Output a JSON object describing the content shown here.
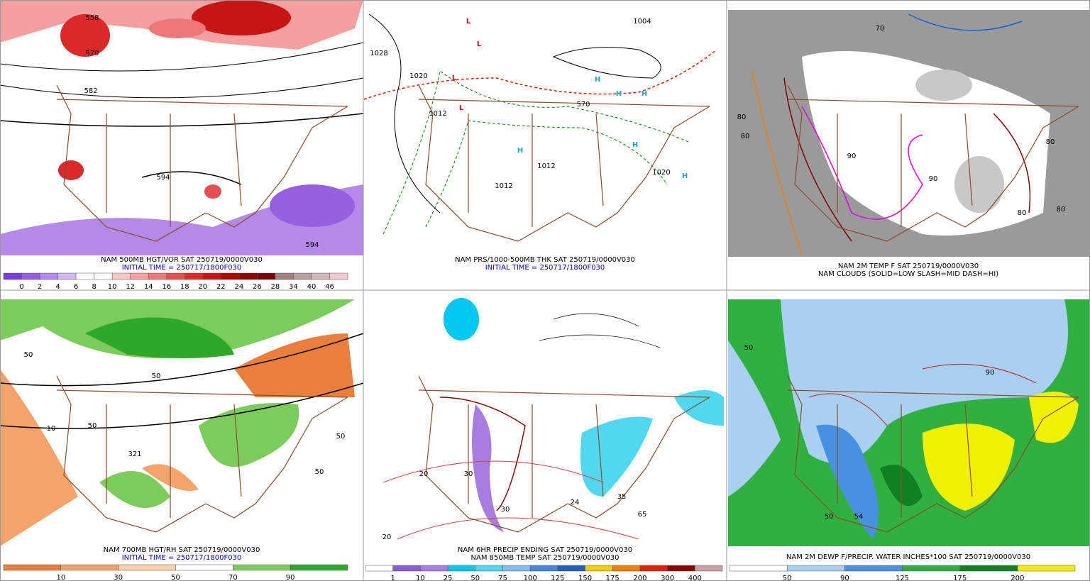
{
  "panels": [
    {
      "captions": [
        "NAM 500MB HGT/VOR SAT 250719/0000V030",
        "INITIAL TIME = 250717/1800F030"
      ],
      "caption_colors": [
        "#000000",
        "#0000cc"
      ],
      "map_labels": [
        "558",
        "570",
        "582",
        "594",
        "594"
      ],
      "colorbar": {
        "colors": [
          "#7a3fd9",
          "#9660e0",
          "#b48ae8",
          "#d0b8f0",
          "#ffffff",
          "#ffffff",
          "#f8c8c8",
          "#f4a0a0",
          "#ee7878",
          "#e65050",
          "#dc2828",
          "#c81414",
          "#b00000",
          "#900000",
          "#780000",
          "#a08080",
          "#b8a0a0",
          "#d0b8b8",
          "#f0c8d0"
        ],
        "labels": [
          "0",
          "2",
          "4",
          "6",
          "8",
          "10",
          "12",
          "14",
          "16",
          "18",
          "20",
          "22",
          "24",
          "26",
          "28",
          "34",
          "40",
          "46"
        ]
      }
    },
    {
      "captions": [
        "NAM PRS/1000-500MB THK SAT 250719/0000V030",
        "INITIAL TIME = 250717/1800F030"
      ],
      "caption_colors": [
        "#000000",
        "#0000cc"
      ],
      "map_labels": [
        "1028",
        "1020",
        "1012",
        "1012",
        "1012",
        "1004",
        "1020",
        "570",
        "L",
        "L",
        "L",
        "L",
        "H",
        "H",
        "H",
        "H",
        "H",
        "H"
      ]
    },
    {
      "captions": [
        "NAM 2M TEMP F SAT 250719/0000V030",
        "NAM CLOUDS (SOLID=LOW SLASH=MID DASH=HI)"
      ],
      "caption_colors": [
        "#000000",
        "#000000"
      ],
      "map_labels": [
        "80",
        "80",
        "90",
        "90",
        "80",
        "70",
        "80",
        "80"
      ]
    },
    {
      "captions": [
        "NAM 700MB HGT/RH SAT 250719/0000V030",
        "INITIAL TIME = 250717/1800F030"
      ],
      "caption_colors": [
        "#000000",
        "#0000cc"
      ],
      "map_labels": [
        "50",
        "50",
        "10",
        "50",
        "50",
        "321",
        "50"
      ],
      "colorbar": {
        "colors": [
          "#e8803c",
          "#f4a46a",
          "#fcd2ae",
          "#ffffff",
          "#7ccc5c",
          "#2ea828"
        ],
        "labels": [
          "10",
          "30",
          "50",
          "70",
          "90"
        ]
      }
    },
    {
      "captions": [
        "NAM 6HR PRECIP ENDING SAT 250719/0000V030",
        "NAM 850MB TEMP SAT 250719/0000V030"
      ],
      "caption_colors": [
        "#000000",
        "#000000"
      ],
      "map_labels": [
        "30",
        "30",
        "20",
        "20",
        "24",
        "35",
        "65"
      ],
      "colorbar": {
        "colors": [
          "#ffffff",
          "#8a5cd8",
          "#a77ee0",
          "#00c8f0",
          "#50d8f0",
          "#80c0f0",
          "#4088e0",
          "#2060c0",
          "#f0d000",
          "#f08000",
          "#e02000",
          "#900000",
          "#c8a0a8"
        ],
        "labels": [
          "1",
          "10",
          "25",
          "50",
          "75",
          "100",
          "125",
          "150",
          "175",
          "200",
          "300",
          "400"
        ]
      }
    },
    {
      "captions": [
        "NAM 2M DEWP F/PRECIP. WATER INCHES*100 SAT 250719/0000V030"
      ],
      "caption_colors": [
        "#000000"
      ],
      "map_labels": [
        "50",
        "54",
        "50",
        "90"
      ],
      "colorbar": {
        "colors": [
          "#ffffff",
          "#a8d0f0",
          "#4890e0",
          "#30b040",
          "#108020",
          "#f0f000"
        ],
        "labels": [
          "50",
          "90",
          "125",
          "175",
          "200"
        ]
      }
    }
  ]
}
